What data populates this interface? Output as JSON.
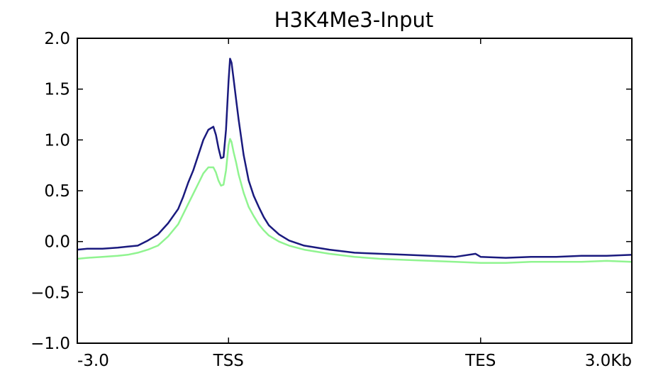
{
  "chart_data": {
    "type": "line",
    "title": "H3K4Me3-Input",
    "xlabel": "",
    "ylabel": "",
    "ylim": [
      -1.0,
      2.0
    ],
    "y_ticks": [
      {
        "value": 2.0,
        "label": "2.0"
      },
      {
        "value": 1.5,
        "label": "1.5"
      },
      {
        "value": 1.0,
        "label": "1.0"
      },
      {
        "value": 0.5,
        "label": "0.5"
      },
      {
        "value": 0.0,
        "label": "0.0"
      },
      {
        "value": -0.5,
        "label": "−0.5"
      },
      {
        "value": -1.0,
        "label": "−1.0"
      }
    ],
    "x_ticks": [
      {
        "position": 0,
        "label": "-3.0"
      },
      {
        "position": 3,
        "label": "TSS"
      },
      {
        "position": 8,
        "label": "TES"
      },
      {
        "position": 11,
        "label": "3.0Kb"
      }
    ],
    "x_range": [
      0,
      11
    ],
    "grid": false,
    "series": [
      {
        "color": "#1a1a7e",
        "x": [
          0,
          0.2,
          0.5,
          0.8,
          1.0,
          1.2,
          1.4,
          1.6,
          1.8,
          2.0,
          2.1,
          2.2,
          2.3,
          2.4,
          2.5,
          2.6,
          2.7,
          2.75,
          2.8,
          2.85,
          2.9,
          2.95,
          3.0,
          3.03,
          3.06,
          3.1,
          3.15,
          3.2,
          3.3,
          3.4,
          3.5,
          3.6,
          3.7,
          3.8,
          4.0,
          4.2,
          4.5,
          5.0,
          5.5,
          6.0,
          6.5,
          7.0,
          7.5,
          7.9,
          8.0,
          8.5,
          9.0,
          9.5,
          10.0,
          10.5,
          11.0
        ],
        "values": [
          -0.08,
          -0.07,
          -0.07,
          -0.06,
          -0.05,
          -0.04,
          0.01,
          0.07,
          0.18,
          0.32,
          0.44,
          0.58,
          0.7,
          0.85,
          1.0,
          1.1,
          1.13,
          1.05,
          0.92,
          0.82,
          0.83,
          1.1,
          1.58,
          1.8,
          1.76,
          1.6,
          1.4,
          1.2,
          0.85,
          0.6,
          0.45,
          0.34,
          0.24,
          0.16,
          0.07,
          0.01,
          -0.04,
          -0.08,
          -0.11,
          -0.12,
          -0.13,
          -0.14,
          -0.15,
          -0.12,
          -0.15,
          -0.16,
          -0.15,
          -0.15,
          -0.14,
          -0.14,
          -0.13
        ]
      },
      {
        "color": "#90f490",
        "x": [
          0,
          0.2,
          0.5,
          0.8,
          1.0,
          1.2,
          1.4,
          1.6,
          1.8,
          2.0,
          2.1,
          2.2,
          2.3,
          2.4,
          2.5,
          2.6,
          2.7,
          2.75,
          2.8,
          2.85,
          2.9,
          2.95,
          3.0,
          3.03,
          3.06,
          3.1,
          3.15,
          3.2,
          3.3,
          3.4,
          3.5,
          3.6,
          3.7,
          3.8,
          4.0,
          4.2,
          4.5,
          5.0,
          5.5,
          6.0,
          6.5,
          7.0,
          7.5,
          8.0,
          8.5,
          9.0,
          9.5,
          10.0,
          10.5,
          11.0
        ],
        "values": [
          -0.17,
          -0.16,
          -0.15,
          -0.14,
          -0.13,
          -0.11,
          -0.08,
          -0.04,
          0.05,
          0.17,
          0.27,
          0.37,
          0.47,
          0.57,
          0.67,
          0.73,
          0.73,
          0.68,
          0.6,
          0.55,
          0.56,
          0.7,
          0.95,
          1.01,
          0.98,
          0.88,
          0.78,
          0.66,
          0.48,
          0.34,
          0.25,
          0.17,
          0.11,
          0.06,
          0.0,
          -0.04,
          -0.08,
          -0.12,
          -0.15,
          -0.17,
          -0.18,
          -0.19,
          -0.2,
          -0.21,
          -0.21,
          -0.2,
          -0.2,
          -0.2,
          -0.19,
          -0.2
        ]
      }
    ]
  }
}
